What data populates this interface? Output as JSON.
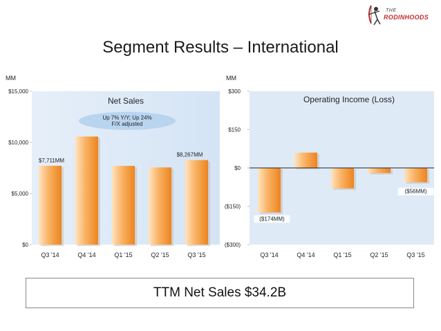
{
  "header": {
    "logo_line1": "THE",
    "logo_line2": "RODINHOODS",
    "title": "Segment Results – International"
  },
  "footer": {
    "ttm_text": "TTM Net Sales $34.2B"
  },
  "colors": {
    "plot_bg": "#dce9f7",
    "bar_light": "#ffd8a8",
    "bar_dark": "#f08a24",
    "callout": "#b9d4ef",
    "logo_red": "#c62828"
  },
  "chart_data": [
    {
      "type": "bar",
      "title": "Net Sales",
      "unit_label": "MM",
      "categories": [
        "Q3 '14",
        "Q4 '14",
        "Q1 '15",
        "Q2 '15",
        "Q3 '15"
      ],
      "values": [
        7711,
        10570,
        7700,
        7550,
        8267
      ],
      "ylim": [
        0,
        15000
      ],
      "yticks": [
        0,
        5000,
        10000,
        15000
      ],
      "ytick_labels": [
        "$0",
        "$5,000",
        "$10,000",
        "$15,000"
      ],
      "data_labels": [
        {
          "index": 0,
          "text": "$7,711MM"
        },
        {
          "index": 4,
          "text": "$8,267MM"
        }
      ],
      "callout_lines": [
        "Up 7% Y/Y; Up 24%",
        "F/X adjusted"
      ]
    },
    {
      "type": "bar",
      "title": "Operating Income (Loss)",
      "unit_label": "MM",
      "categories": [
        "Q3 '14",
        "Q4 '14",
        "Q1 '15",
        "Q2 '15",
        "Q3 '15"
      ],
      "values": [
        -174,
        60,
        -80,
        -20,
        -56
      ],
      "ylim": [
        -300,
        300
      ],
      "yticks": [
        -300,
        -150,
        0,
        150,
        300
      ],
      "ytick_labels": [
        "($300)",
        "($150)",
        "$0",
        "$150",
        "$300"
      ],
      "data_labels": [
        {
          "index": 0,
          "text": "($174MM)"
        },
        {
          "index": 4,
          "text": "($56MM)"
        }
      ]
    }
  ]
}
